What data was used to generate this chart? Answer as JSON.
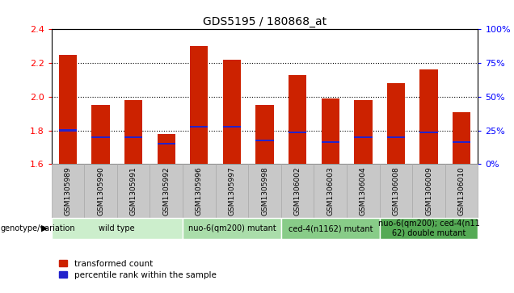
{
  "title": "GDS5195 / 180868_at",
  "samples": [
    "GSM1305989",
    "GSM1305990",
    "GSM1305991",
    "GSM1305992",
    "GSM1305996",
    "GSM1305997",
    "GSM1305998",
    "GSM1306002",
    "GSM1306003",
    "GSM1306004",
    "GSM1306008",
    "GSM1306009",
    "GSM1306010"
  ],
  "red_bar_values": [
    2.25,
    1.95,
    1.98,
    1.78,
    2.3,
    2.22,
    1.95,
    2.13,
    1.99,
    1.98,
    2.08,
    2.16,
    1.91
  ],
  "blue_marker_values": [
    1.8,
    1.76,
    1.76,
    1.72,
    1.82,
    1.82,
    1.74,
    1.79,
    1.73,
    1.76,
    1.76,
    1.79,
    1.73
  ],
  "ymin": 1.6,
  "ymax": 2.4,
  "yticks_left": [
    1.6,
    1.8,
    2.0,
    2.2,
    2.4
  ],
  "yticks_right_values": [
    0,
    25,
    50,
    75,
    100
  ],
  "yticks_right_positions": [
    1.6,
    1.8,
    2.0,
    2.2,
    2.4
  ],
  "group_labels": [
    "wild type",
    "nuo-6(qm200) mutant",
    "ced-4(n1162) mutant",
    "nuo-6(qm200); ced-4(n11\n62) double mutant"
  ],
  "group_ranges": [
    [
      0,
      4
    ],
    [
      4,
      7
    ],
    [
      7,
      10
    ],
    [
      10,
      13
    ]
  ],
  "group_bg_colors": [
    "#cceecc",
    "#aaddaa",
    "#88cc88",
    "#55aa55"
  ],
  "bar_color": "#cc2200",
  "blue_color": "#2222cc",
  "bar_width": 0.55,
  "genotype_label": "genotype/variation",
  "legend_red": "transformed count",
  "legend_blue": "percentile rank within the sample",
  "grid_lines": [
    1.8,
    2.0,
    2.2
  ],
  "sample_box_color": "#c8c8c8",
  "sample_box_edge": "#aaaaaa"
}
